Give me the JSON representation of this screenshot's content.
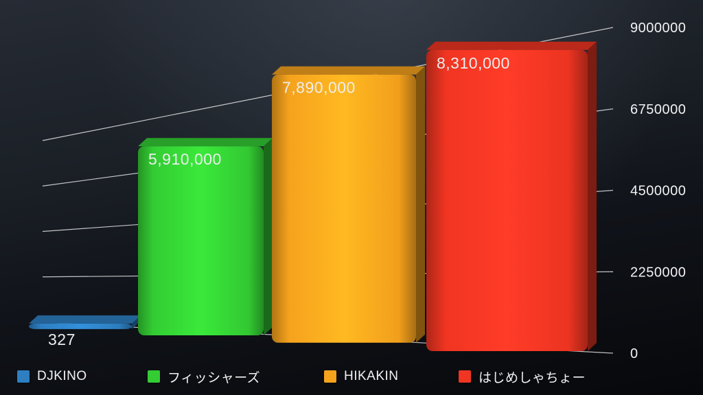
{
  "chart_data": {
    "type": "bar",
    "categories": [
      "DJKINO",
      "フィッシャーズ",
      "HIKAKIN",
      "はじめしゃちょー"
    ],
    "values": [
      327,
      5910000,
      7890000,
      8310000
    ],
    "value_labels": [
      "327",
      "5,910,000",
      "7,890,000",
      "8,310,000"
    ],
    "colors": [
      "#2d7fc1",
      "#33cc33",
      "#f6a21d",
      "#f03522"
    ],
    "y_ticks": [
      0,
      2250000,
      4500000,
      6750000,
      9000000
    ],
    "y_tick_labels": [
      "0",
      "2250000",
      "4500000",
      "6750000",
      "9000000"
    ],
    "ylim": [
      0,
      9000000
    ],
    "grid": true,
    "legend_position": "bottom",
    "legend": [
      {
        "label": "DJKINO",
        "color": "#2d7fc1"
      },
      {
        "label": "フィッシャーズ",
        "color": "#33cc33"
      },
      {
        "label": "HIKAKIN",
        "color": "#f6a21d"
      },
      {
        "label": "はじめしゃちょー",
        "color": "#f03522"
      }
    ],
    "style": {
      "background_dark": "#0a0c10",
      "grid_line_color": "#ffffff",
      "text_color": "#f2f3f4"
    }
  }
}
